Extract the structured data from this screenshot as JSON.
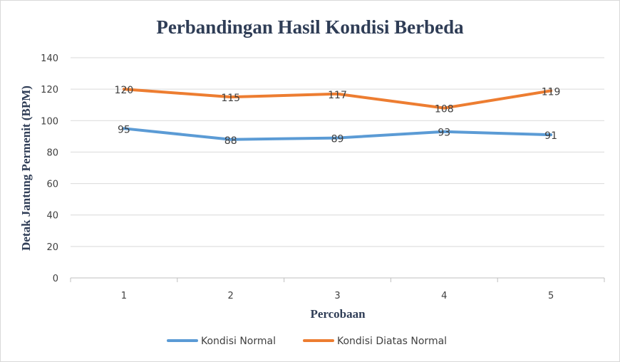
{
  "chart_data": {
    "type": "line",
    "title": "Perbandingan Hasil Kondisi Berbeda",
    "xlabel": "Percobaan",
    "ylabel": "Detak Jantung Permenit (BPM)",
    "categories": [
      "1",
      "2",
      "3",
      "4",
      "5"
    ],
    "ylim": [
      0,
      140
    ],
    "yticks": [
      0,
      20,
      40,
      60,
      80,
      100,
      120,
      140
    ],
    "grid": true,
    "legend_position": "bottom",
    "series": [
      {
        "name": "Kondisi Normal",
        "color": "#5b9bd5",
        "values": [
          95,
          88,
          89,
          93,
          91
        ]
      },
      {
        "name": "Kondisi Diatas Normal",
        "color": "#ed7d31",
        "values": [
          120,
          115,
          117,
          108,
          119
        ]
      }
    ]
  }
}
